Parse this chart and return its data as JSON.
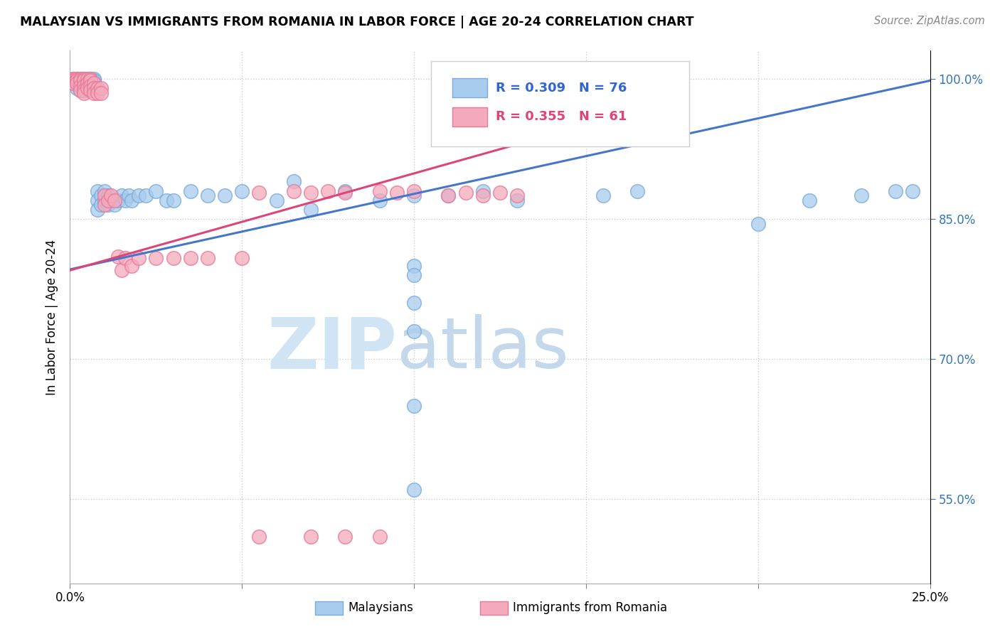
{
  "title": "MALAYSIAN VS IMMIGRANTS FROM ROMANIA IN LABOR FORCE | AGE 20-24 CORRELATION CHART",
  "source": "Source: ZipAtlas.com",
  "ylabel": "In Labor Force | Age 20-24",
  "xmin": 0.0,
  "xmax": 0.25,
  "ymin": 0.46,
  "ymax": 1.03,
  "blue_color": "#A8CCEE",
  "pink_color": "#F4AABC",
  "blue_edge_color": "#7AAAD8",
  "pink_edge_color": "#E87898",
  "blue_line_color": "#4477CC",
  "pink_line_color": "#DD4477",
  "watermark_zip_color": "#D0E4F4",
  "watermark_atlas_color": "#C4D8EC",
  "legend_r_blue": "R = 0.309",
  "legend_n_blue": "N = 76",
  "legend_r_pink": "R = 0.355",
  "legend_n_pink": "N = 61",
  "blue_line_x0": 0.0,
  "blue_line_y0": 0.796,
  "blue_line_x1": 0.25,
  "blue_line_y1": 0.998,
  "pink_line_x0": 0.0,
  "pink_line_y0": 0.795,
  "pink_line_x1": 0.135,
  "pink_line_y1": 0.935,
  "blue_x": [
    0.001,
    0.001,
    0.001,
    0.002,
    0.002,
    0.002,
    0.002,
    0.003,
    0.003,
    0.003,
    0.003,
    0.003,
    0.004,
    0.004,
    0.004,
    0.004,
    0.004,
    0.005,
    0.005,
    0.005,
    0.005,
    0.006,
    0.006,
    0.006,
    0.006,
    0.007,
    0.007,
    0.007,
    0.007,
    0.008,
    0.008,
    0.008,
    0.009,
    0.009,
    0.01,
    0.01,
    0.011,
    0.011,
    0.012,
    0.013,
    0.014,
    0.015,
    0.016,
    0.017,
    0.018,
    0.02,
    0.022,
    0.025,
    0.028,
    0.03,
    0.035,
    0.04,
    0.045,
    0.05,
    0.06,
    0.065,
    0.07,
    0.08,
    0.09,
    0.1,
    0.11,
    0.12,
    0.13,
    0.155,
    0.165,
    0.2,
    0.215,
    0.23,
    0.24,
    0.245,
    0.1,
    0.1,
    0.1,
    0.1,
    0.1,
    0.1
  ],
  "blue_y": [
    1.0,
    0.998,
    0.995,
    1.0,
    0.998,
    0.995,
    0.99,
    1.0,
    0.998,
    0.995,
    0.992,
    0.988,
    1.0,
    0.998,
    0.995,
    0.992,
    0.988,
    1.0,
    0.998,
    0.995,
    0.99,
    1.0,
    0.998,
    0.995,
    0.992,
    1.0,
    0.998,
    0.995,
    0.99,
    0.88,
    0.87,
    0.86,
    0.875,
    0.865,
    0.88,
    0.87,
    0.875,
    0.865,
    0.87,
    0.865,
    0.87,
    0.875,
    0.87,
    0.875,
    0.87,
    0.875,
    0.875,
    0.88,
    0.87,
    0.87,
    0.88,
    0.875,
    0.875,
    0.88,
    0.87,
    0.89,
    0.86,
    0.88,
    0.87,
    0.875,
    0.875,
    0.88,
    0.87,
    0.875,
    0.88,
    0.845,
    0.87,
    0.875,
    0.88,
    0.88,
    0.8,
    0.79,
    0.76,
    0.73,
    0.65,
    0.56
  ],
  "pink_x": [
    0.001,
    0.001,
    0.001,
    0.002,
    0.002,
    0.002,
    0.003,
    0.003,
    0.003,
    0.003,
    0.004,
    0.004,
    0.004,
    0.004,
    0.004,
    0.005,
    0.005,
    0.005,
    0.006,
    0.006,
    0.006,
    0.006,
    0.007,
    0.007,
    0.007,
    0.008,
    0.008,
    0.009,
    0.009,
    0.01,
    0.01,
    0.011,
    0.012,
    0.013,
    0.014,
    0.015,
    0.016,
    0.018,
    0.02,
    0.025,
    0.03,
    0.035,
    0.04,
    0.05,
    0.055,
    0.065,
    0.07,
    0.075,
    0.08,
    0.09,
    0.095,
    0.1,
    0.11,
    0.115,
    0.12,
    0.125,
    0.13,
    0.055,
    0.07,
    0.08,
    0.09
  ],
  "pink_y": [
    1.0,
    0.998,
    0.995,
    1.0,
    0.998,
    0.995,
    1.0,
    0.998,
    0.992,
    0.988,
    1.0,
    0.998,
    0.992,
    0.988,
    0.985,
    1.0,
    0.995,
    0.99,
    1.0,
    0.998,
    0.992,
    0.988,
    0.995,
    0.99,
    0.985,
    0.99,
    0.985,
    0.99,
    0.985,
    0.875,
    0.865,
    0.87,
    0.875,
    0.87,
    0.81,
    0.795,
    0.808,
    0.8,
    0.808,
    0.808,
    0.808,
    0.808,
    0.808,
    0.808,
    0.878,
    0.88,
    0.878,
    0.88,
    0.878,
    0.88,
    0.878,
    0.88,
    0.875,
    0.878,
    0.875,
    0.878,
    0.875,
    0.51,
    0.51,
    0.51,
    0.51
  ]
}
